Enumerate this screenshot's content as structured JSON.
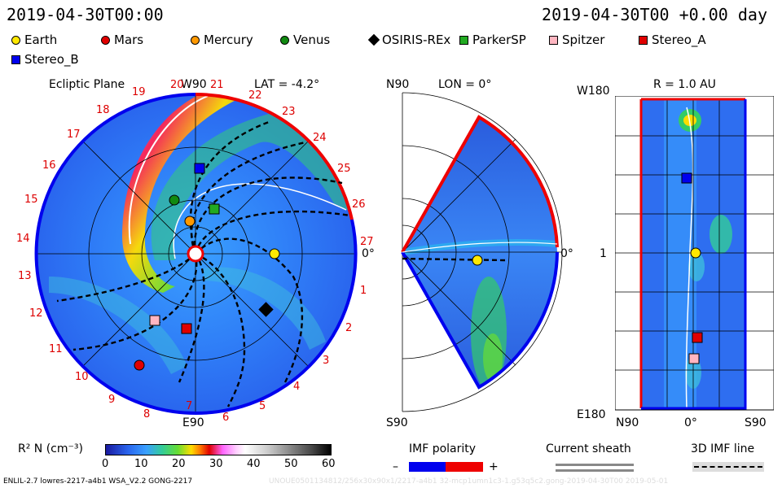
{
  "header": {
    "time": "2019-04-30T00:00",
    "offset": "2019-04-30T00 +0.00 day"
  },
  "legend": [
    {
      "name": "Earth",
      "color": "#ffe800",
      "shape": "circle"
    },
    {
      "name": "Mars",
      "color": "#e00000",
      "shape": "circle"
    },
    {
      "name": "Mercury",
      "color": "#ff9900",
      "shape": "circle"
    },
    {
      "name": "Venus",
      "color": "#118a11",
      "shape": "circle"
    },
    {
      "name": "OSIRIS-REx",
      "color": "#000000",
      "shape": "diamond"
    },
    {
      "name": "ParkerSP",
      "color": "#22aa22",
      "shape": "square"
    },
    {
      "name": "Spitzer",
      "color": "#ffb6c1",
      "shape": "square"
    },
    {
      "name": "Stereo_A",
      "color": "#e00000",
      "shape": "square"
    },
    {
      "name": "Stereo_B",
      "color": "#0000ee",
      "shape": "square"
    }
  ],
  "panel1": {
    "title": "Ecliptic Plane",
    "lat": "LAT = -4.2°",
    "top": "W90",
    "bottom": "E90",
    "right": "0°",
    "ticks": [
      "20",
      "21",
      "22",
      "23",
      "24",
      "25",
      "26",
      "27",
      "1",
      "2",
      "3",
      "4",
      "5",
      "6",
      "7",
      "8",
      "9",
      "10",
      "11",
      "12",
      "13",
      "14",
      "15",
      "16",
      "17",
      "18",
      "19"
    ]
  },
  "panel2": {
    "top": "N90",
    "lon": "LON = 0°",
    "bottom": "S90",
    "right": "0°"
  },
  "panel3": {
    "r": "R = 1.0 AU",
    "top": "W180",
    "bottom": "E180",
    "mid": "1",
    "x_left": "N90",
    "x_mid": "0°",
    "x_right": "S90"
  },
  "colorbar": {
    "label": "R² N (cm⁻³)",
    "ticks": [
      "0",
      "10",
      "20",
      "30",
      "40",
      "50",
      "60"
    ]
  },
  "imf": {
    "label": "IMF polarity",
    "minus": "–",
    "plus": "+"
  },
  "sheath": {
    "label": "Current sheath"
  },
  "imf3d": {
    "label": "3D IMF line"
  },
  "footer": {
    "left": "ENLIL-2.7 lowres-2217-a4b1 WSA_V2.2 GONG-2217",
    "right": "UNOUE0501134812/256x30x90x1/2217-a4b1 32-mcp1umn1c3-1.g53q5c2.gong-2019-04-30T00   2019-05-01"
  }
}
